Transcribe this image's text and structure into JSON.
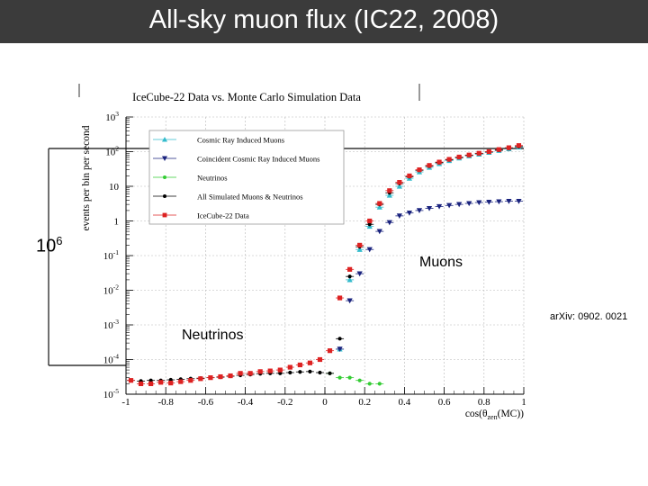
{
  "slide": {
    "title": "All-sky muon flux (IC22, 2008)",
    "colors": {
      "title_bar": "#3b3b3b",
      "title_text": "#ffffff"
    }
  },
  "annotations": {
    "rate_base": "10",
    "rate_exp": "6",
    "muons": "Muons",
    "neutrinos": "Neutrinos",
    "arxiv": "arXiv: 0902. 0021"
  },
  "chart_data": {
    "type": "scatter",
    "title": "IceCube-22 Data vs. Monte Carlo Simulation Data",
    "ylabel": "events per bin per second",
    "xlabel_main": "cos(θ",
    "xlabel_sub": "zen",
    "xlabel_end": "(MC))",
    "x_range": [
      -1,
      1
    ],
    "y_range_log10": [
      -5,
      3
    ],
    "y_scale": "log",
    "grid": true,
    "legend_position": "top-left",
    "x_ticks": [
      {
        "value": -1,
        "label": "-1"
      },
      {
        "value": -0.8,
        "label": "-0.8"
      },
      {
        "value": -0.6,
        "label": "-0.6"
      },
      {
        "value": -0.4,
        "label": "-0.4"
      },
      {
        "value": -0.2,
        "label": "-0.2"
      },
      {
        "value": 0,
        "label": "0"
      },
      {
        "value": 0.2,
        "label": "0.2"
      },
      {
        "value": 0.4,
        "label": "0.4"
      },
      {
        "value": 0.6,
        "label": "0.6"
      },
      {
        "value": 0.8,
        "label": "0.8"
      },
      {
        "value": 1,
        "label": "1"
      }
    ],
    "y_ticks": [
      {
        "exp": 3,
        "base": "10",
        "sup": "3"
      },
      {
        "exp": 2,
        "base": "10",
        "sup": "2"
      },
      {
        "exp": 1,
        "base": "10",
        "sup": ""
      },
      {
        "exp": 0,
        "base": "1",
        "sup": ""
      },
      {
        "exp": -1,
        "base": "10",
        "sup": "-1"
      },
      {
        "exp": -2,
        "base": "10",
        "sup": "-2"
      },
      {
        "exp": -3,
        "base": "10",
        "sup": "-3"
      },
      {
        "exp": -4,
        "base": "10",
        "sup": "-4"
      },
      {
        "exp": -5,
        "base": "10",
        "sup": "-5"
      }
    ],
    "series": [
      {
        "name": "Cosmic Ray Induced Muons",
        "color": "#33bbcc",
        "marker": "triangle-up",
        "points": [
          [
            0.075,
            0.0002
          ],
          [
            0.125,
            0.02
          ],
          [
            0.175,
            0.15
          ],
          [
            0.225,
            0.7
          ],
          [
            0.275,
            2.5
          ],
          [
            0.325,
            5.5
          ],
          [
            0.375,
            10
          ],
          [
            0.425,
            17
          ],
          [
            0.475,
            26
          ],
          [
            0.525,
            35
          ],
          [
            0.575,
            45
          ],
          [
            0.625,
            55
          ],
          [
            0.675,
            65
          ],
          [
            0.725,
            75
          ],
          [
            0.775,
            84
          ],
          [
            0.825,
            95
          ],
          [
            0.875,
            108
          ],
          [
            0.925,
            120
          ],
          [
            0.975,
            135
          ]
        ]
      },
      {
        "name": "Coincident Cosmic Ray Induced Muons",
        "color": "#1a237e",
        "marker": "triangle-down",
        "points": [
          [
            0.075,
            0.0002
          ],
          [
            0.125,
            0.005
          ],
          [
            0.175,
            0.03
          ],
          [
            0.225,
            0.15
          ],
          [
            0.275,
            0.5
          ],
          [
            0.325,
            0.9
          ],
          [
            0.375,
            1.4
          ],
          [
            0.425,
            1.7
          ],
          [
            0.475,
            2.0
          ],
          [
            0.525,
            2.3
          ],
          [
            0.575,
            2.6
          ],
          [
            0.625,
            2.8
          ],
          [
            0.675,
            3.0
          ],
          [
            0.725,
            3.2
          ],
          [
            0.775,
            3.4
          ],
          [
            0.825,
            3.5
          ],
          [
            0.875,
            3.6
          ],
          [
            0.925,
            3.7
          ],
          [
            0.975,
            3.7
          ]
        ]
      },
      {
        "name": "Neutrinos",
        "color": "#33cc33",
        "marker": "circle",
        "points": [
          [
            0.025,
            4e-05
          ],
          [
            0.075,
            3e-05
          ],
          [
            0.125,
            3e-05
          ],
          [
            0.175,
            2.5e-05
          ],
          [
            0.225,
            2e-05
          ],
          [
            0.275,
            2e-05
          ]
        ]
      },
      {
        "name": "All Simulated Muons & Neutrinos",
        "color": "#000000",
        "marker": "circle",
        "points": [
          [
            -0.975,
            2.5e-05
          ],
          [
            -0.925,
            2.4e-05
          ],
          [
            -0.875,
            2.5e-05
          ],
          [
            -0.825,
            2.5e-05
          ],
          [
            -0.775,
            2.6e-05
          ],
          [
            -0.725,
            2.7e-05
          ],
          [
            -0.675,
            2.8e-05
          ],
          [
            -0.625,
            2.9e-05
          ],
          [
            -0.575,
            3e-05
          ],
          [
            -0.525,
            3.1e-05
          ],
          [
            -0.475,
            3.3e-05
          ],
          [
            -0.425,
            3.5e-05
          ],
          [
            -0.375,
            3.7e-05
          ],
          [
            -0.325,
            3.9e-05
          ],
          [
            -0.275,
            4e-05
          ],
          [
            -0.225,
            4e-05
          ],
          [
            -0.175,
            4.2e-05
          ],
          [
            -0.125,
            4.4e-05
          ],
          [
            -0.075,
            4.5e-05
          ],
          [
            -0.025,
            4.2e-05
          ],
          [
            0.025,
            4e-05
          ],
          [
            0.075,
            0.0004
          ],
          [
            0.125,
            0.025
          ],
          [
            0.175,
            0.18
          ],
          [
            0.225,
            0.8
          ],
          [
            0.275,
            3.0
          ],
          [
            0.325,
            6.5
          ],
          [
            0.375,
            12
          ],
          [
            0.425,
            19
          ],
          [
            0.475,
            29
          ],
          [
            0.525,
            38
          ],
          [
            0.575,
            48
          ],
          [
            0.625,
            58
          ],
          [
            0.675,
            68
          ],
          [
            0.725,
            78
          ],
          [
            0.775,
            88
          ],
          [
            0.825,
            98
          ],
          [
            0.875,
            110
          ],
          [
            0.925,
            125
          ],
          [
            0.975,
            140
          ]
        ]
      },
      {
        "name": "IceCube-22 Data",
        "color": "#dd2222",
        "marker": "square",
        "points": [
          [
            -0.975,
            2.5e-05
          ],
          [
            -0.925,
            2e-05
          ],
          [
            -0.875,
            2e-05
          ],
          [
            -0.825,
            2.2e-05
          ],
          [
            -0.775,
            2.1e-05
          ],
          [
            -0.725,
            2.3e-05
          ],
          [
            -0.675,
            2.5e-05
          ],
          [
            -0.625,
            2.8e-05
          ],
          [
            -0.575,
            3e-05
          ],
          [
            -0.525,
            3.2e-05
          ],
          [
            -0.475,
            3.4e-05
          ],
          [
            -0.425,
            4e-05
          ],
          [
            -0.375,
            4e-05
          ],
          [
            -0.325,
            4.5e-05
          ],
          [
            -0.275,
            4.7e-05
          ],
          [
            -0.225,
            5e-05
          ],
          [
            -0.175,
            6e-05
          ],
          [
            -0.125,
            7e-05
          ],
          [
            -0.075,
            8e-05
          ],
          [
            -0.025,
            0.0001
          ],
          [
            0.025,
            0.00018
          ],
          [
            0.075,
            0.006
          ],
          [
            0.125,
            0.04
          ],
          [
            0.175,
            0.2
          ],
          [
            0.225,
            1.0
          ],
          [
            0.275,
            3.2
          ],
          [
            0.325,
            7.5
          ],
          [
            0.375,
            13
          ],
          [
            0.425,
            20
          ],
          [
            0.475,
            30
          ],
          [
            0.525,
            40
          ],
          [
            0.575,
            50
          ],
          [
            0.625,
            60
          ],
          [
            0.675,
            70
          ],
          [
            0.725,
            80
          ],
          [
            0.775,
            90
          ],
          [
            0.825,
            100
          ],
          [
            0.875,
            115
          ],
          [
            0.925,
            130
          ],
          [
            0.975,
            150
          ]
        ]
      }
    ]
  }
}
